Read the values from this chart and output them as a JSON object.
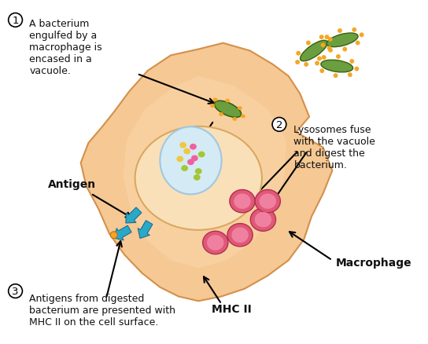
{
  "bg_color": "#ffffff",
  "macrophage_color": "#f5c894",
  "vacuole_color": "#d4eaf5",
  "vacuole_border": "#a0c8e0",
  "bacterium_color": "#6b9e3f",
  "bacterium_dot_color": "#f5a623",
  "lysosome_color": "#e8607a",
  "lysosome_inner": "#f08090",
  "mhc_color": "#2aa8c8",
  "dot_green": "#a0c832",
  "dot_pink": "#f060a0",
  "dot_yellow": "#f0c840",
  "text_color": "#111111",
  "label1_text": "A bacterium\nengulfed by a\nmacrophage is\nencased in a\nvacuole.",
  "label2_text": "Lysosomes fuse\nwith the vacuole\nand digest the\nbacterium.",
  "label3_text": "Antigens from digested\nbacterium are presented with\nMHC II on the cell surface.",
  "antigen_label": "Antigen",
  "macrophage_label": "Macrophage",
  "mhcii_label": "MHC II",
  "step1": "1",
  "step2": "2",
  "step3": "3"
}
